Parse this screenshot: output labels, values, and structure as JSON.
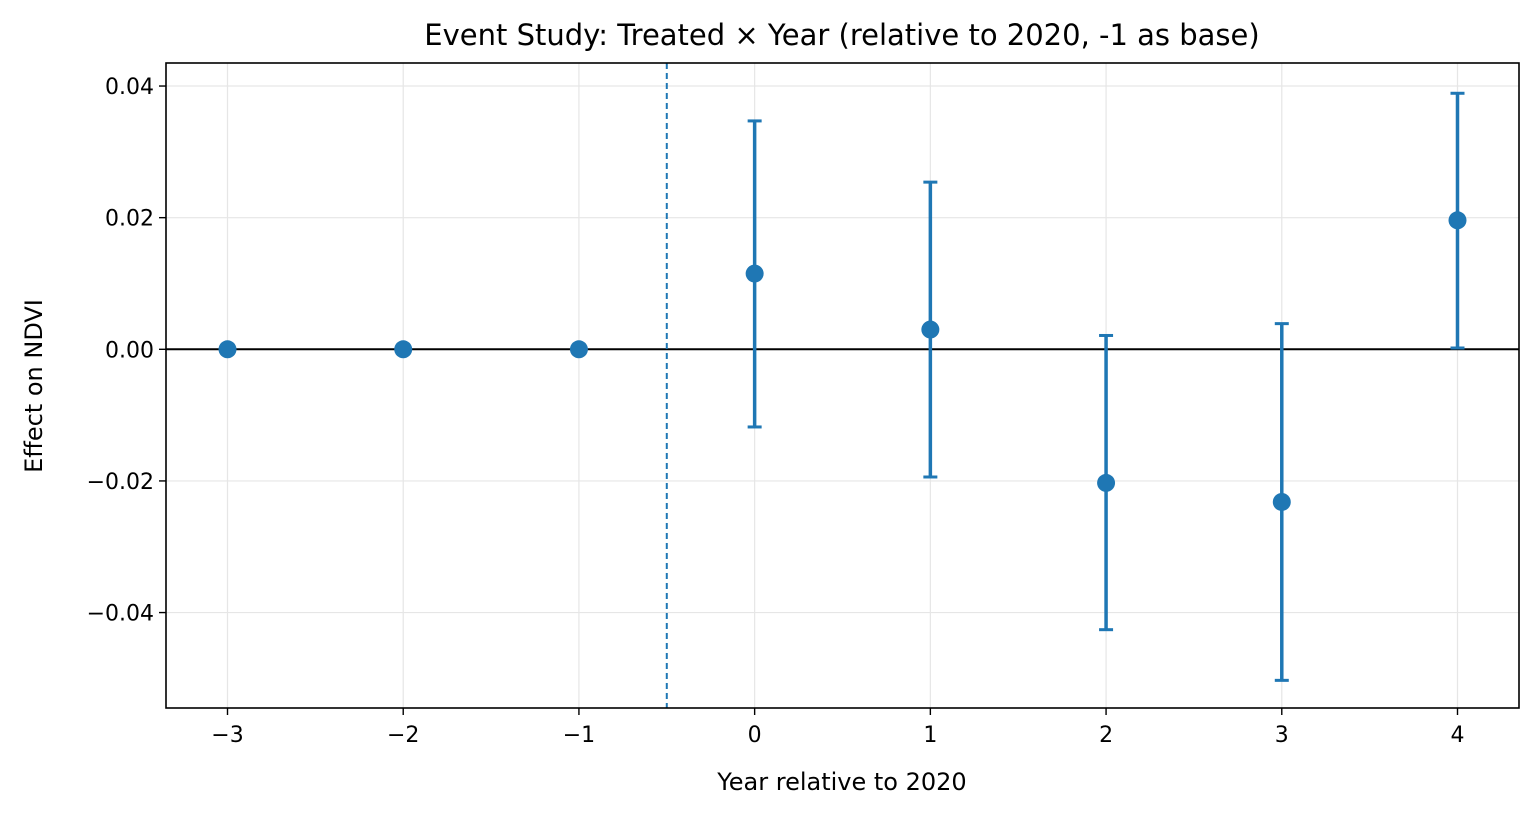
{
  "chart_data": {
    "type": "scatter",
    "title": "Event Study: Treated × Year (relative to 2020, -1 as base)",
    "xlabel": "Year relative to 2020",
    "ylabel": "Effect on NDVI",
    "xlim": [
      -3.35,
      4.35
    ],
    "ylim": [
      -0.0545,
      0.0435
    ],
    "x_ticks": [
      -3,
      -2,
      -1,
      0,
      1,
      2,
      3,
      4
    ],
    "x_tick_labels": [
      "−3",
      "−2",
      "−1",
      "0",
      "1",
      "2",
      "3",
      "4"
    ],
    "y_ticks": [
      0.04,
      0.02,
      0.0,
      -0.02,
      -0.04
    ],
    "y_tick_labels": [
      "0.04",
      "0.02",
      "0.00",
      "−0.02",
      "−0.04"
    ],
    "grid": true,
    "reference_lines": {
      "horizontal_y": 0,
      "vertical_dashed_x": -0.5
    },
    "colors": {
      "point": "#1f77b4",
      "errorbar": "#1f77b4",
      "zero_line": "#000000",
      "event_line": "#1f77b4",
      "grid": "#e6e6e6"
    },
    "points": [
      {
        "x": -3,
        "y": 0.0,
        "ci_low": null,
        "ci_high": null
      },
      {
        "x": -2,
        "y": 0.0,
        "ci_low": null,
        "ci_high": null
      },
      {
        "x": -1,
        "y": 0.0,
        "ci_low": null,
        "ci_high": null
      },
      {
        "x": 0,
        "y": 0.0115,
        "ci_low": -0.0118,
        "ci_high": 0.0347
      },
      {
        "x": 1,
        "y": 0.003,
        "ci_low": -0.0194,
        "ci_high": 0.0254
      },
      {
        "x": 2,
        "y": -0.0203,
        "ci_low": -0.0426,
        "ci_high": 0.0021
      },
      {
        "x": 3,
        "y": -0.0232,
        "ci_low": -0.0503,
        "ci_high": 0.0039
      },
      {
        "x": 4,
        "y": 0.0196,
        "ci_low": 0.0002,
        "ci_high": 0.0389
      }
    ]
  }
}
